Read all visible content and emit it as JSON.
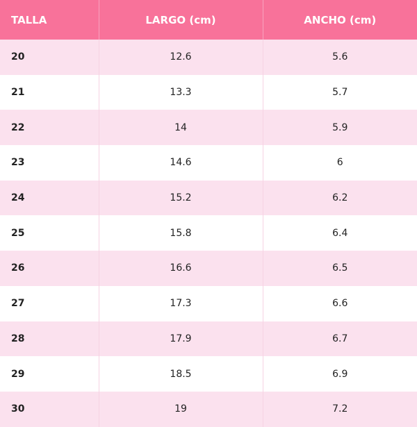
{
  "table": {
    "header": [
      "TALLA",
      "LARGO (cm)",
      "ANCHO (cm)"
    ],
    "rows": [
      [
        "20",
        "12.6",
        "5.6"
      ],
      [
        "21",
        "13.3",
        "5.7"
      ],
      [
        "22",
        "14",
        "5.9"
      ],
      [
        "23",
        "14.6",
        "6"
      ],
      [
        "24",
        "15.2",
        "6.2"
      ],
      [
        "25",
        "15.8",
        "6.4"
      ],
      [
        "26",
        "16.6",
        "6.5"
      ],
      [
        "27",
        "17.3",
        "6.6"
      ],
      [
        "28",
        "17.9",
        "6.7"
      ],
      [
        "29",
        "18.5",
        "6.9"
      ],
      [
        "30",
        "19",
        "7.2"
      ]
    ]
  }
}
